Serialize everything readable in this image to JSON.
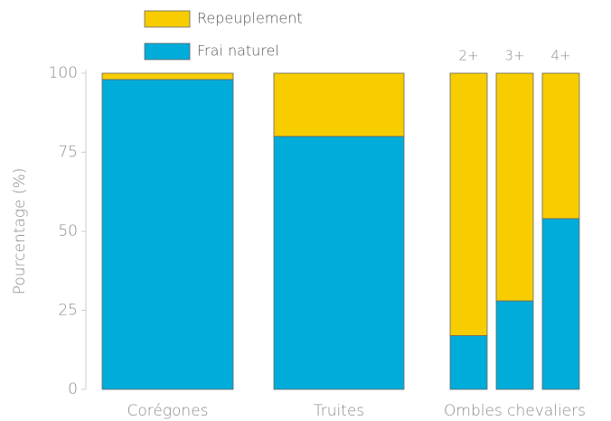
{
  "chart_data": {
    "type": "stacked_bar",
    "y_label": "Pourcentage (%)",
    "categories": [
      "Corégones",
      "Truites",
      "Ombles chevaliers"
    ],
    "subcategories": [
      [
        null
      ],
      [
        null
      ],
      [
        "2+",
        "3+",
        "4+"
      ]
    ],
    "series": [
      {
        "name": "Frai naturel",
        "color": "#00acd9",
        "values": [
          [
            98
          ],
          [
            80
          ],
          [
            17,
            28,
            54
          ]
        ]
      },
      {
        "name": "Repeuplement",
        "color": "#f7cd00",
        "values": [
          [
            2
          ],
          [
            20
          ],
          [
            83,
            72,
            46
          ]
        ]
      }
    ],
    "ylim": [
      0,
      100
    ],
    "yticks": [
      0,
      25,
      50,
      75,
      100
    ]
  }
}
